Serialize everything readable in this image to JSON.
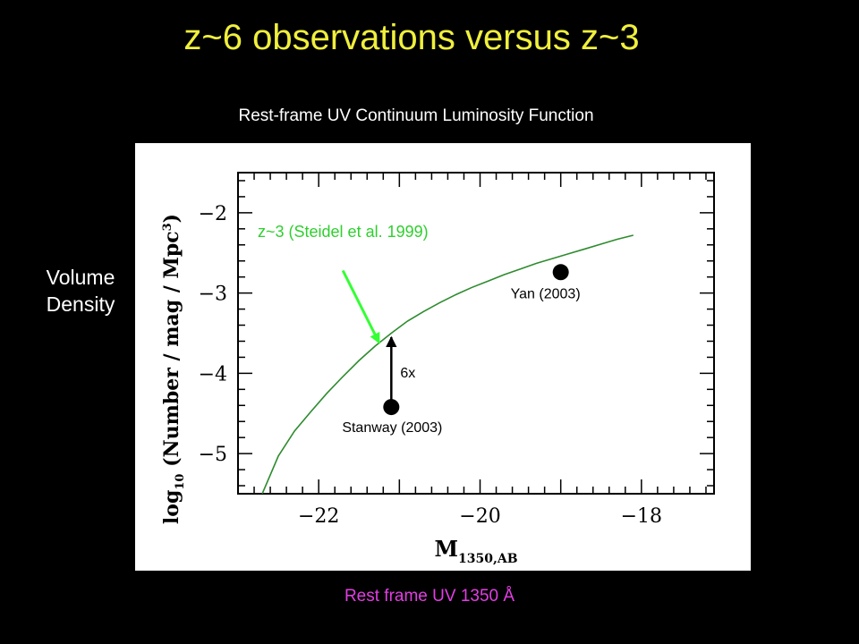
{
  "slide": {
    "title": "z~6 observations versus z~3",
    "subtitle": "Rest-frame UV Continuum Luminosity Function",
    "side_label_line1": "Volume",
    "side_label_line2": "Density",
    "bottom_label": "Rest frame UV 1350 Å"
  },
  "colors": {
    "background": "#000000",
    "title": "#f0ef3c",
    "bottom_label": "#e23ee3",
    "curve": "#2e8b2e",
    "curve_label": "#2fcf2f",
    "pointer_arrow": "#33ff33"
  },
  "chart_data": {
    "type": "line",
    "xlim": [
      -23,
      -17.1
    ],
    "ylim": [
      -5.5,
      -1.5
    ],
    "xticks": [
      "-22",
      "-20",
      "-18"
    ],
    "yticks": [
      "-2",
      "-3",
      "-4",
      "-5"
    ],
    "xlabel": {
      "main": "M",
      "sub": "1350,AB"
    },
    "ylabel": {
      "prefix": "log",
      "sub": "10",
      "main": "(Number / mag / Mpc",
      "sup": "3",
      "suffix": ")"
    },
    "series": [
      {
        "name": "z~3 (Steidel et al. 1999)",
        "x": [
          -22.7,
          -22.5,
          -22.3,
          -22.1,
          -21.9,
          -21.7,
          -21.5,
          -21.3,
          -21.1,
          -20.9,
          -20.7,
          -20.5,
          -20.3,
          -20.1,
          -19.9,
          -19.7,
          -19.5,
          -19.3,
          -19.1,
          -18.9,
          -18.7,
          -18.5,
          -18.3,
          -18.1
        ],
        "y": [
          -5.5,
          -5.03,
          -4.72,
          -4.48,
          -4.25,
          -4.04,
          -3.84,
          -3.66,
          -3.5,
          -3.35,
          -3.23,
          -3.12,
          -3.02,
          -2.93,
          -2.85,
          -2.77,
          -2.7,
          -2.63,
          -2.57,
          -2.51,
          -2.45,
          -2.39,
          -2.33,
          -2.28
        ]
      }
    ],
    "points": [
      {
        "name": "Stanway (2003)",
        "x": -21.1,
        "y": -4.42
      },
      {
        "name": "Yan (2003)",
        "x": -19.0,
        "y": -2.74
      }
    ],
    "annotations": {
      "curve_label": "z~3 (Steidel et al. 1999)",
      "factor_label": "6x",
      "factor_arrow": {
        "x": -21.1,
        "from_y": -4.42,
        "to_y": -3.55
      },
      "pointer_arrow": {
        "from": [
          -21.7,
          -2.72
        ],
        "to": [
          -21.25,
          -3.62
        ]
      }
    }
  }
}
